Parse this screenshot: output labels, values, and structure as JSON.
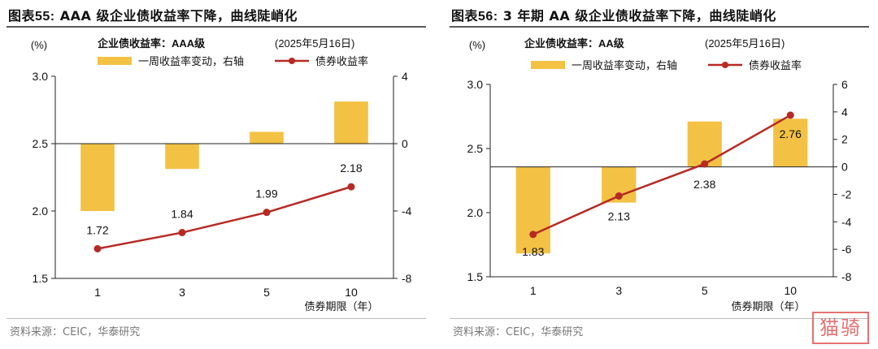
{
  "charts": [
    {
      "id": "p55",
      "figure_label": "图表55:",
      "title": "AAA 级企业债收益率下降，曲线陡峭化",
      "source": "资料来源：CEIC，华泰研究",
      "chart_data": {
        "type": "bar+line",
        "subtitle": "企业债收益率：AAA级",
        "date_label": "(2025年5月16日)",
        "y_unit_label": "(%)",
        "xlabel": "债券期限（年）",
        "categories": [
          "1",
          "3",
          "5",
          "10"
        ],
        "series": [
          {
            "name": "一周收益率变动，右轴",
            "kind": "bar",
            "axis": "right",
            "color": "#f3c143",
            "values": [
              -4.0,
              -1.5,
              0.7,
              2.5
            ]
          },
          {
            "name": "债券收益率",
            "kind": "line",
            "axis": "left",
            "color": "#b72a23",
            "values": [
              1.72,
              1.84,
              1.99,
              2.18
            ],
            "labels": [
              "1.72",
              "1.84",
              "1.99",
              "2.18"
            ]
          }
        ],
        "ylim_left": [
          1.5,
          3.0
        ],
        "yticks_left": [
          1.5,
          2.0,
          2.5,
          3.0
        ],
        "yticklabels_left": [
          "1.5",
          "2.0",
          "2.5",
          "3.0"
        ],
        "ylim_right": [
          -8,
          4
        ],
        "yticks_right": [
          -8,
          -4,
          0,
          4
        ],
        "yticklabels_right": [
          "-8",
          "-4",
          "0",
          "4"
        ],
        "grid": false,
        "legend_position": "top"
      }
    },
    {
      "id": "p56",
      "figure_label": "图表56:",
      "title": "3 年期 AA 级企业债收益率下降，曲线陡峭化",
      "source": "资料来源：CEIC，华泰研究",
      "chart_data": {
        "type": "bar+line",
        "subtitle": "企业债收益率：AA级",
        "date_label": "(2025年5月16日)",
        "y_unit_label": "(%)",
        "xlabel": "债券期限（年）",
        "categories": [
          "1",
          "3",
          "5",
          "10"
        ],
        "series": [
          {
            "name": "一周收益率变动，右轴",
            "kind": "bar",
            "axis": "right",
            "color": "#f3c143",
            "values": [
              -6.3,
              -2.6,
              3.3,
              3.5
            ]
          },
          {
            "name": "债券收益率",
            "kind": "line",
            "axis": "left",
            "color": "#b72a23",
            "values": [
              1.83,
              2.13,
              2.38,
              2.76
            ],
            "labels": [
              "1.83",
              "2.13",
              "2.38",
              "2.76"
            ]
          }
        ],
        "ylim_left": [
          1.5,
          3.0
        ],
        "yticks_left": [
          1.5,
          2.0,
          2.5,
          3.0
        ],
        "yticklabels_left": [
          "1.5",
          "2.0",
          "2.5",
          "3.0"
        ],
        "ylim_right": [
          -8,
          6
        ],
        "yticks_right": [
          -8,
          -6,
          -4,
          -2,
          0,
          2,
          4,
          6
        ],
        "yticklabels_right": [
          "-8",
          "-6",
          "-4",
          "-2",
          "0",
          "2",
          "4",
          "6"
        ],
        "grid": false,
        "legend_position": "top"
      }
    }
  ],
  "watermark_text": "猫骑"
}
